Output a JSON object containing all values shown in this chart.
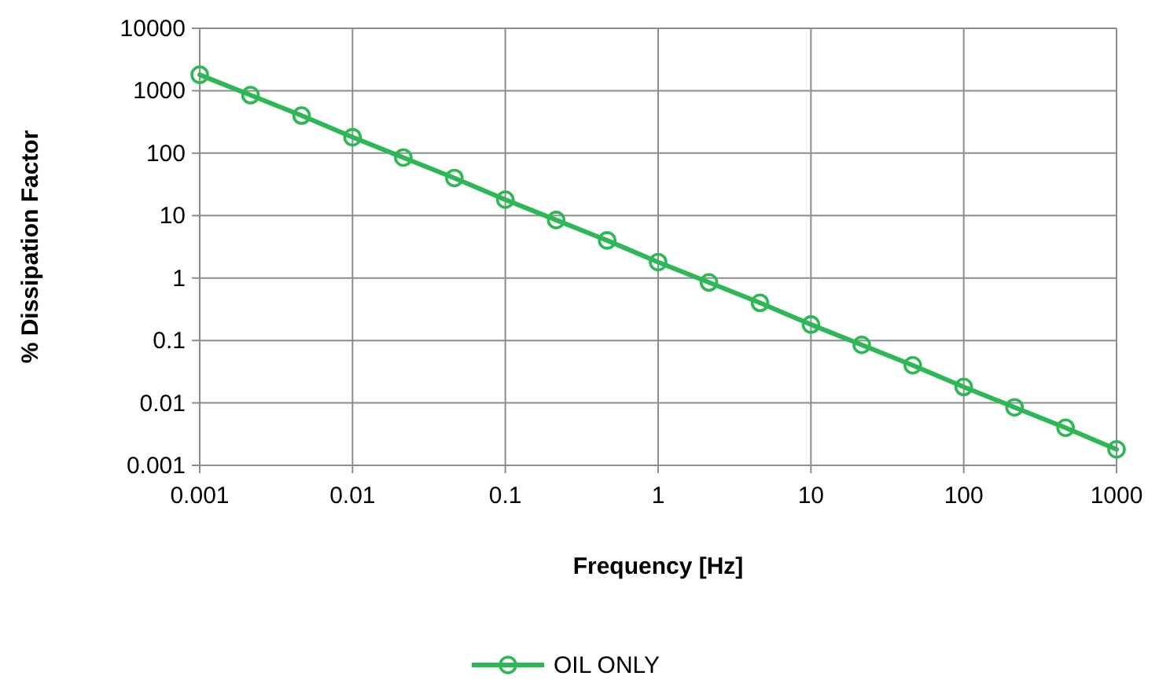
{
  "chart_data": {
    "type": "line",
    "xlabel": "Frequency [Hz]",
    "ylabel": "% Dissipation Factor",
    "log": "xy",
    "grid": true,
    "legend": "bottom",
    "marker": "circle",
    "line_style": "solid",
    "xlim": [
      0.001,
      1000
    ],
    "xticks": [
      0.001,
      0.01,
      0.1,
      1,
      10,
      100,
      1000
    ],
    "ylim": [
      0.001,
      10000
    ],
    "yticks": [
      0.001,
      0.01,
      0.1,
      1,
      10,
      100,
      1000,
      10000
    ],
    "series": [
      {
        "name": "OIL ONLY",
        "color": "#2db855",
        "x": [
          0.001,
          0.00215,
          0.00464,
          0.01,
          0.0215,
          0.0464,
          0.1,
          0.215,
          0.464,
          1,
          2.15,
          4.64,
          10,
          21.5,
          46.4,
          100,
          215,
          464,
          1000
        ],
        "values": [
          1800,
          850,
          400,
          180,
          85,
          40,
          18,
          8.5,
          4,
          1.8,
          0.85,
          0.4,
          0.18,
          0.085,
          0.04,
          0.018,
          0.0085,
          0.004,
          0.0018
        ]
      }
    ]
  }
}
